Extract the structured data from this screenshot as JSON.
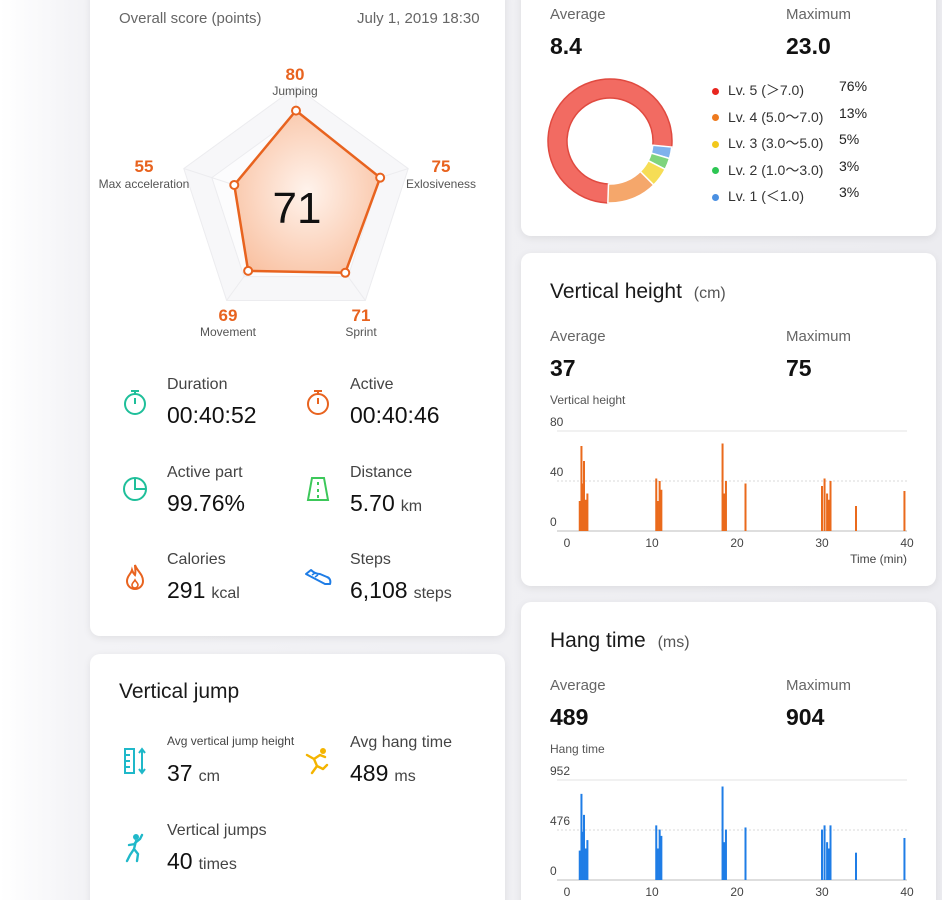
{
  "overview": {
    "header_label": "Overall score (points)",
    "timestamp": "July 1, 2019 18:30",
    "overall_score": "71",
    "radar": {
      "jumping": {
        "value": "80",
        "label": "Jumping",
        "score": 80
      },
      "explosiveness": {
        "value": "75",
        "label": "Exlosiveness",
        "score": 75
      },
      "sprint": {
        "value": "71",
        "label": "Sprint",
        "score": 71
      },
      "movement": {
        "value": "69",
        "label": "Movement",
        "score": 69
      },
      "max_acceleration": {
        "value": "55",
        "label": "Max acceleration",
        "score": 55
      }
    },
    "stats": {
      "duration": {
        "label": "Duration",
        "value": "00:40:52"
      },
      "active": {
        "label": "Active",
        "value": "00:40:46"
      },
      "active_part": {
        "label": "Active part",
        "value": "99.76%"
      },
      "distance": {
        "label": "Distance",
        "value": "5.70",
        "unit": "km"
      },
      "calories": {
        "label": "Calories",
        "value": "291",
        "unit": "kcal"
      },
      "steps": {
        "label": "Steps",
        "value": "6,108",
        "unit": "steps"
      }
    }
  },
  "vertical_jump": {
    "title": "Vertical jump",
    "avg_height_label": "Avg vertical jump height",
    "avg_height_value": "37",
    "avg_height_unit": "cm",
    "avg_hang_label": "Avg hang time",
    "avg_hang_value": "489",
    "avg_hang_unit": "ms",
    "jumps_label": "Vertical jumps",
    "jumps_value": "40",
    "jumps_unit": "times"
  },
  "speed": {
    "average_label": "Average",
    "average_value": "8.4",
    "maximum_label": "Maximum",
    "maximum_value": "23.0",
    "levels": [
      {
        "label": "Lv. 5 (＞7.0)",
        "pct": "76%",
        "value": 76,
        "color": "#f26b62"
      },
      {
        "label": "Lv. 4 (5.0～7.0)",
        "pct": "13%",
        "value": 13,
        "color": "#f5a76b"
      },
      {
        "label": "Lv. 3 (3.0～5.0)",
        "pct": "5%",
        "value": 5,
        "color": "#f6dd55"
      },
      {
        "label": "Lv. 2 (1.0～3.0)",
        "pct": "3%",
        "value": 3,
        "color": "#7fd47d"
      },
      {
        "label": "Lv. 1 (＜1.0)",
        "pct": "3%",
        "value": 3,
        "color": "#7fb2ec"
      }
    ]
  },
  "vertical_height": {
    "title": "Vertical height",
    "unit": "(cm)",
    "average_label": "Average",
    "average_value": "37",
    "maximum_label": "Maximum",
    "maximum_value": "75",
    "chart_label": "Vertical height",
    "xlabel": "Time (min)"
  },
  "hang_time": {
    "title": "Hang time",
    "unit": "(ms)",
    "average_label": "Average",
    "average_value": "489",
    "maximum_label": "Maximum",
    "maximum_value": "904",
    "chart_label": "Hang time"
  },
  "chart_data": [
    {
      "type": "pie",
      "categories": [
        "Lv. 5 (＞7.0)",
        "Lv. 4 (5.0～7.0)",
        "Lv. 3 (3.0～5.0)",
        "Lv. 2 (1.0～3.0)",
        "Lv. 1 (＜1.0)"
      ],
      "values": [
        76,
        13,
        5,
        3,
        3
      ]
    },
    {
      "type": "bar",
      "title": "Vertical height",
      "xlabel": "Time (min)",
      "ylabel": "Vertical height",
      "xlim": [
        0,
        40
      ],
      "ylim": [
        0,
        80
      ],
      "xticks": [
        "0",
        "10",
        "20",
        "30",
        "40"
      ],
      "yticks": [
        "0",
        "40",
        "80"
      ],
      "color": "#ea6a1c",
      "x": [
        1.5,
        1.7,
        1.8,
        1.9,
        2.0,
        2.2,
        2.4,
        10.5,
        10.7,
        10.9,
        11.1,
        18.3,
        18.5,
        18.7,
        21.0,
        30.0,
        30.3,
        30.6,
        30.8,
        31.0,
        34.0,
        39.7
      ],
      "values": [
        24,
        68,
        30,
        38,
        56,
        25,
        30,
        42,
        24,
        40,
        33,
        70,
        30,
        40,
        38,
        36,
        42,
        30,
        25,
        40,
        20,
        32
      ]
    },
    {
      "type": "bar",
      "title": "Hang time",
      "ylabel": "Hang time",
      "xlim": [
        0,
        40
      ],
      "ylim": [
        0,
        952
      ],
      "xticks": [
        "0",
        "10",
        "20",
        "30",
        "40"
      ],
      "yticks": [
        "0",
        "476",
        "952"
      ],
      "color": "#1f7de6",
      "x": [
        1.5,
        1.7,
        1.8,
        1.9,
        2.0,
        2.2,
        2.4,
        10.5,
        10.7,
        10.9,
        11.1,
        18.3,
        18.5,
        18.7,
        21.0,
        30.0,
        30.3,
        30.6,
        30.8,
        31.0,
        34.0,
        39.7
      ],
      "values": [
        280,
        820,
        360,
        460,
        620,
        300,
        380,
        520,
        300,
        480,
        420,
        890,
        360,
        480,
        500,
        480,
        520,
        360,
        300,
        520,
        260,
        400
      ]
    }
  ]
}
